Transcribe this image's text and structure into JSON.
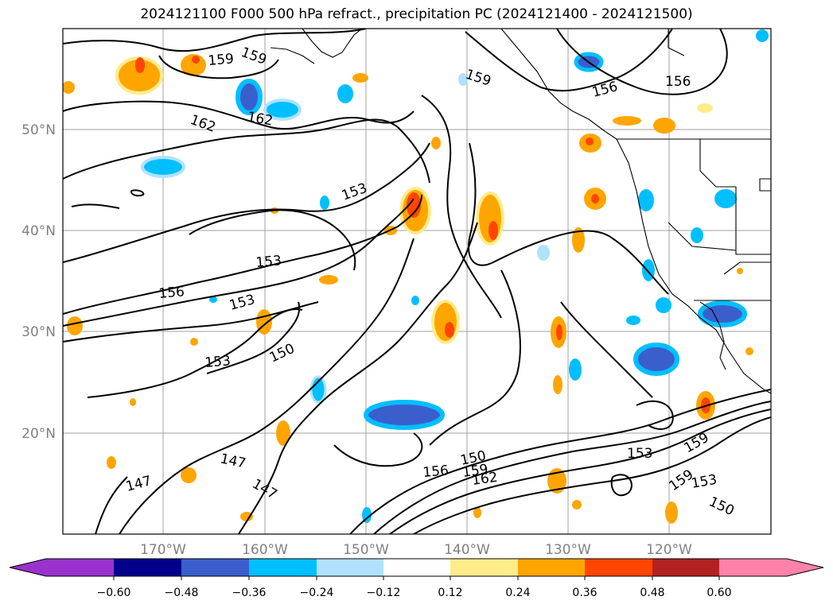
{
  "title": "2024121100 F000 500 hPa refract., precipitation PC (2024121400 - 2024121500)",
  "map": {
    "lat_labels": [
      "50°N",
      "40°N",
      "30°N",
      "20°N"
    ],
    "lon_labels": [
      "170°W",
      "160°W",
      "150°W",
      "140°W",
      "130°W",
      "120°W"
    ],
    "contour_labels": [
      "159",
      "159",
      "156",
      "156",
      "162",
      "162",
      "159",
      "153",
      "153",
      "153",
      "156",
      "150",
      "153",
      "147",
      "147",
      "147",
      "150",
      "156",
      "159",
      "162",
      "153",
      "159",
      "153",
      "150",
      "159"
    ]
  },
  "colorbar": {
    "ticks": [
      "−0.60",
      "−0.48",
      "−0.36",
      "−0.24",
      "−0.12",
      "0.12",
      "0.24",
      "0.36",
      "0.48",
      "0.60"
    ],
    "colors": [
      "#9932cc",
      "#00008b",
      "#3a5fcd",
      "#00bfff",
      "#b0e2ff",
      "#ffffff",
      "#ffec8b",
      "#ffa500",
      "#ff4500",
      "#b22222",
      "#ff82ab"
    ]
  }
}
